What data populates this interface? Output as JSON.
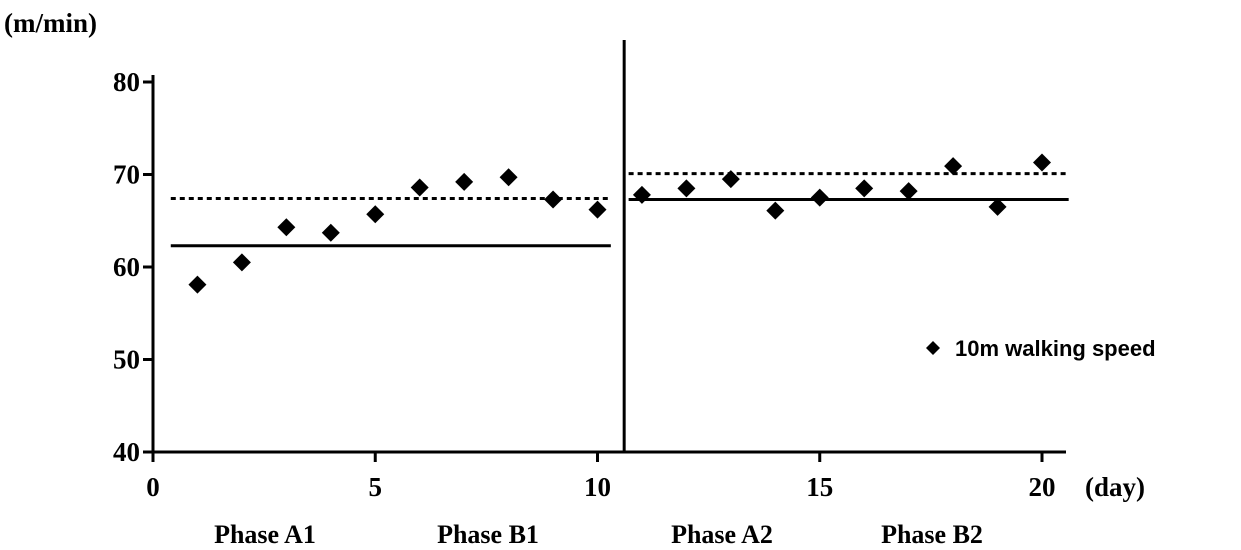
{
  "chart_data": {
    "type": "scatter",
    "title": "",
    "ylabel": "(m/min)",
    "xlabel": "(day)",
    "xlim": [
      0,
      20.5
    ],
    "ylim": [
      40,
      80
    ],
    "xticks": [
      0,
      5,
      10,
      15,
      20
    ],
    "yticks": [
      40,
      50,
      60,
      70,
      80
    ],
    "xtick_labels": [
      "0",
      "5",
      "10",
      "15",
      "20"
    ],
    "ytick_labels": [
      "40",
      "50",
      "60",
      "70",
      "80"
    ],
    "grid": false,
    "legend": {
      "position": "right",
      "entries": [
        "10m walking speed"
      ]
    },
    "series": [
      {
        "name": "10m walking speed",
        "marker": "diamond",
        "x": [
          1,
          2,
          3,
          4,
          5,
          6,
          7,
          8,
          9,
          10,
          11,
          12,
          13,
          14,
          15,
          16,
          17,
          18,
          19,
          20
        ],
        "y": [
          58.1,
          60.5,
          64.3,
          63.7,
          65.7,
          68.6,
          69.2,
          69.7,
          67.3,
          66.2,
          67.8,
          68.5,
          69.5,
          66.1,
          67.5,
          68.5,
          68.2,
          70.9,
          66.5,
          71.3
        ]
      }
    ],
    "reference_lines": [
      {
        "style": "solid",
        "x_from": 0.4,
        "x_to": 10.3,
        "y": 62.3
      },
      {
        "style": "dotted",
        "x_from": 0.4,
        "x_to": 10.3,
        "y": 67.4
      },
      {
        "style": "solid",
        "x_from": 10.7,
        "x_to": 20.6,
        "y": 67.3
      },
      {
        "style": "dotted",
        "x_from": 10.7,
        "x_to": 20.6,
        "y": 70.1
      }
    ],
    "phase_divider_x": 10.6,
    "phase_labels": [
      "Phase A1",
      "Phase B1",
      "Phase A2",
      "Phase B2"
    ]
  }
}
